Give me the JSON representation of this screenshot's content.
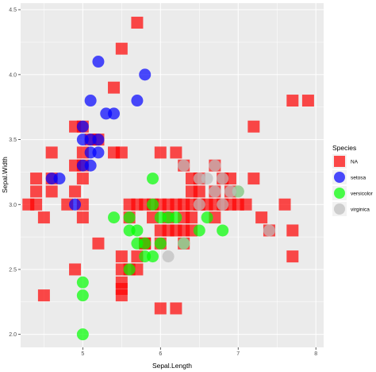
{
  "chart_data": {
    "type": "scatter",
    "xlabel": "Sepal.Length",
    "ylabel": "Sepal.Width",
    "xlim": [
      4.2,
      8.1
    ],
    "ylim": [
      1.9,
      4.55
    ],
    "x_ticks": [
      5,
      6,
      7,
      8
    ],
    "x_tick_labels": [
      "5",
      "6",
      "7",
      "8"
    ],
    "y_ticks": [
      2.0,
      2.5,
      3.0,
      3.5,
      4.0,
      4.5
    ],
    "y_tick_labels": [
      "2.0",
      "2.5",
      "3.0",
      "3.5",
      "4.0",
      "4.5"
    ],
    "grid": true,
    "panel_background": "#ebebeb",
    "grid_color": "#ffffff",
    "legend": {
      "title": "Species",
      "position": "right",
      "entries": [
        {
          "label": "NA",
          "color": "#ff0000",
          "shape": "square"
        },
        {
          "label": "setosa",
          "color": "#0000ff",
          "shape": "circle"
        },
        {
          "label": "versicolor",
          "color": "#00ff00",
          "shape": "circle"
        },
        {
          "label": "virginica",
          "color": "#bebebe",
          "shape": "circle"
        }
      ]
    },
    "series": [
      {
        "name": "NA",
        "shape": "square",
        "color": "#ff0000",
        "points": [
          [
            5.7,
            4.4
          ],
          [
            5.5,
            4.2
          ],
          [
            5.4,
            3.9
          ],
          [
            5.0,
            3.6
          ],
          [
            7.7,
            3.8
          ],
          [
            7.9,
            3.8
          ],
          [
            4.6,
            3.4
          ],
          [
            5.4,
            3.4
          ],
          [
            5.0,
            3.4
          ],
          [
            4.9,
            3.6
          ],
          [
            5.1,
            3.5
          ],
          [
            5.2,
            3.5
          ],
          [
            7.2,
            3.6
          ],
          [
            4.4,
            3.2
          ],
          [
            4.9,
            3.3
          ],
          [
            5.0,
            3.3
          ],
          [
            5.0,
            3.2
          ],
          [
            5.5,
            3.4
          ],
          [
            6.0,
            3.4
          ],
          [
            6.2,
            3.4
          ],
          [
            4.3,
            3.0
          ],
          [
            4.4,
            3.0
          ],
          [
            4.5,
            2.9
          ],
          [
            4.6,
            3.1
          ],
          [
            4.8,
            3.0
          ],
          [
            4.9,
            3.1
          ],
          [
            5.0,
            3.0
          ],
          [
            5.0,
            2.9
          ],
          [
            4.4,
            3.1
          ],
          [
            4.6,
            3.2
          ],
          [
            5.6,
            3.0
          ],
          [
            5.7,
            3.0
          ],
          [
            5.8,
            3.0
          ],
          [
            5.9,
            3.0
          ],
          [
            6.0,
            3.0
          ],
          [
            6.1,
            3.0
          ],
          [
            6.2,
            3.0
          ],
          [
            6.3,
            3.0
          ],
          [
            6.4,
            3.0
          ],
          [
            6.5,
            3.0
          ],
          [
            6.6,
            3.0
          ],
          [
            6.7,
            3.0
          ],
          [
            6.8,
            3.0
          ],
          [
            6.9,
            3.0
          ],
          [
            7.0,
            3.0
          ],
          [
            7.1,
            3.0
          ],
          [
            7.6,
            3.0
          ],
          [
            6.3,
            3.3
          ],
          [
            6.4,
            3.2
          ],
          [
            6.5,
            3.2
          ],
          [
            6.7,
            3.3
          ],
          [
            6.8,
            3.2
          ],
          [
            6.9,
            3.2
          ],
          [
            7.2,
            3.2
          ],
          [
            6.4,
            3.1
          ],
          [
            6.7,
            3.1
          ],
          [
            6.9,
            3.1
          ],
          [
            5.6,
            2.9
          ],
          [
            5.9,
            2.9
          ],
          [
            6.1,
            2.9
          ],
          [
            6.4,
            2.8
          ],
          [
            6.7,
            2.9
          ],
          [
            7.3,
            2.9
          ],
          [
            6.0,
            2.8
          ],
          [
            6.2,
            2.8
          ],
          [
            6.3,
            2.8
          ],
          [
            7.4,
            2.8
          ],
          [
            7.7,
            2.8
          ],
          [
            5.8,
            2.7
          ],
          [
            6.0,
            2.7
          ],
          [
            6.3,
            2.7
          ],
          [
            5.6,
            2.5
          ],
          [
            5.7,
            2.6
          ],
          [
            5.5,
            2.6
          ],
          [
            7.7,
            2.6
          ],
          [
            5.2,
            2.7
          ],
          [
            4.9,
            2.5
          ],
          [
            5.5,
            2.4
          ],
          [
            5.5,
            2.35
          ],
          [
            4.5,
            2.3
          ],
          [
            5.5,
            2.3
          ],
          [
            6.0,
            2.2
          ],
          [
            6.2,
            2.2
          ],
          [
            5.8,
            2.7
          ],
          [
            5.5,
            2.5
          ],
          [
            5.7,
            2.5
          ],
          [
            6.1,
            2.8
          ],
          [
            6.3,
            2.9
          ],
          [
            6.4,
            2.9
          ],
          [
            6.5,
            3.1
          ]
        ]
      },
      {
        "name": "setosa",
        "shape": "circle",
        "color": "#0000ff",
        "points": [
          [
            5.2,
            4.1
          ],
          [
            5.8,
            4.0
          ],
          [
            5.1,
            3.8
          ],
          [
            5.7,
            3.8
          ],
          [
            5.4,
            3.7
          ],
          [
            5.3,
            3.7
          ],
          [
            5.0,
            3.6
          ],
          [
            5.1,
            3.5
          ],
          [
            5.2,
            3.5
          ],
          [
            5.0,
            3.5
          ],
          [
            5.1,
            3.4
          ],
          [
            5.2,
            3.4
          ],
          [
            5.1,
            3.3
          ],
          [
            4.7,
            3.2
          ],
          [
            4.6,
            3.2
          ],
          [
            5.0,
            3.3
          ],
          [
            4.9,
            3.0
          ]
        ]
      },
      {
        "name": "versicolor",
        "shape": "circle",
        "color": "#00ff00",
        "points": [
          [
            5.9,
            3.2
          ],
          [
            5.9,
            3.0
          ],
          [
            7.0,
            3.1
          ],
          [
            6.0,
            2.9
          ],
          [
            6.1,
            2.9
          ],
          [
            6.2,
            2.9
          ],
          [
            5.6,
            2.9
          ],
          [
            5.7,
            2.8
          ],
          [
            5.8,
            2.7
          ],
          [
            6.3,
            2.7
          ],
          [
            6.5,
            2.8
          ],
          [
            6.6,
            2.9
          ],
          [
            6.8,
            2.8
          ],
          [
            5.8,
            2.6
          ],
          [
            5.6,
            2.8
          ],
          [
            5.7,
            2.7
          ],
          [
            5.9,
            2.6
          ],
          [
            6.0,
            2.7
          ],
          [
            5.6,
            2.5
          ],
          [
            5.4,
            2.9
          ],
          [
            5.0,
            2.4
          ],
          [
            5.0,
            2.3
          ],
          [
            5.0,
            2.0
          ]
        ]
      },
      {
        "name": "virginica",
        "shape": "circle",
        "color": "#bebebe",
        "points": [
          [
            6.3,
            3.3
          ],
          [
            6.5,
            3.2
          ],
          [
            6.7,
            3.3
          ],
          [
            6.5,
            3.0
          ],
          [
            6.6,
            3.2
          ],
          [
            6.8,
            3.2
          ],
          [
            7.0,
            3.1
          ],
          [
            6.9,
            3.1
          ],
          [
            6.7,
            3.1
          ],
          [
            6.8,
            3.0
          ],
          [
            6.3,
            2.7
          ],
          [
            7.4,
            2.8
          ],
          [
            6.1,
            2.6
          ]
        ]
      }
    ]
  }
}
